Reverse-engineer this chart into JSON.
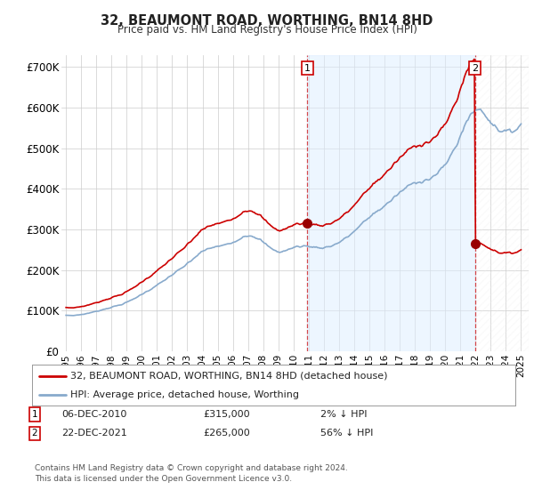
{
  "title": "32, BEAUMONT ROAD, WORTHING, BN14 8HD",
  "subtitle": "Price paid vs. HM Land Registry's House Price Index (HPI)",
  "ylabel_ticks": [
    "£0",
    "£100K",
    "£200K",
    "£300K",
    "£400K",
    "£500K",
    "£600K",
    "£700K"
  ],
  "ylim": [
    0,
    730000
  ],
  "sale1_date": "06-DEC-2010",
  "sale1_price": 315000,
  "sale1_label": "1",
  "sale1_hpi_pct": "2% ↓ HPI",
  "sale1_year": 2010.92,
  "sale2_date": "22-DEC-2021",
  "sale2_price": 265000,
  "sale2_label": "2",
  "sale2_hpi_pct": "56% ↓ HPI",
  "sale2_year": 2021.97,
  "legend_line1": "32, BEAUMONT ROAD, WORTHING, BN14 8HD (detached house)",
  "legend_line2": "HPI: Average price, detached house, Worthing",
  "footnote": "Contains HM Land Registry data © Crown copyright and database right 2024.\nThis data is licensed under the Open Government Licence v3.0.",
  "line_color_red": "#cc0000",
  "line_color_blue": "#88aacc",
  "fill_color_blue": "#ddeeff",
  "marker_color": "#990000",
  "grid_color": "#cccccc",
  "annotation_box_color": "#cc0000",
  "background_color": "#ffffff",
  "xlim_left": 1994.7,
  "xlim_right": 2025.5
}
